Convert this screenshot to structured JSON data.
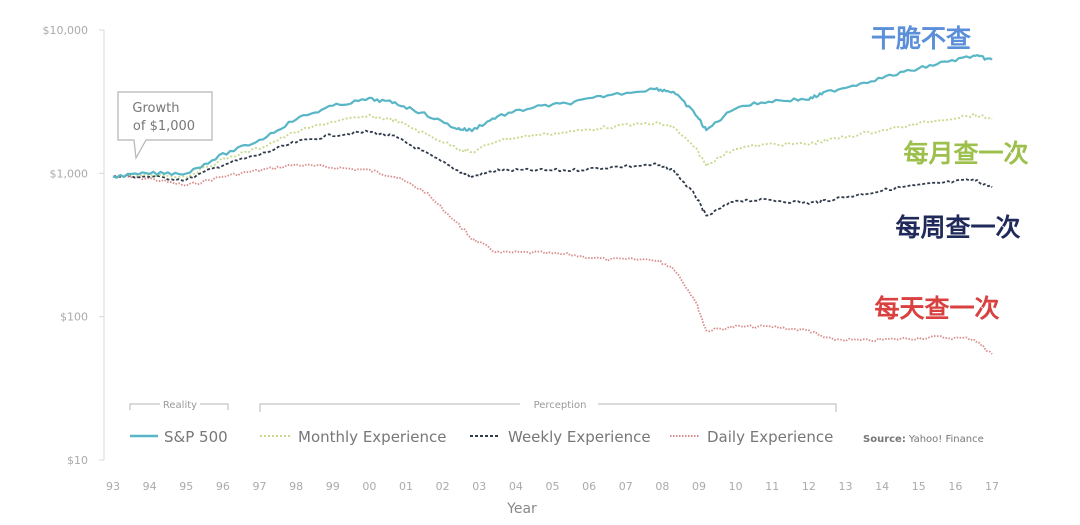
{
  "chart_data": {
    "type": "line",
    "xlabel": "Year",
    "x_ticks": [
      "93",
      "94",
      "95",
      "96",
      "97",
      "98",
      "99",
      "00",
      "01",
      "02",
      "03",
      "04",
      "05",
      "06",
      "07",
      "08",
      "09",
      "10",
      "11",
      "12",
      "13",
      "14",
      "15",
      "16",
      "17"
    ],
    "y_scale": "log",
    "ylim": [
      10,
      10000
    ],
    "y_ticks": [
      {
        "value": 10,
        "label": "$10"
      },
      {
        "value": 100,
        "label": "$100"
      },
      {
        "value": 1000,
        "label": "$1,000"
      },
      {
        "value": 10000,
        "label": "$10,000"
      }
    ],
    "callout": "Growth of $1,000",
    "legend": {
      "group_reality": "Reality",
      "group_perception": "Perception",
      "source_label": "Source:",
      "source_value": "Yahoo! Finance"
    },
    "series": [
      {
        "name": "S&P 500",
        "annotation": "干脆不查",
        "color": "#58b6c6",
        "annotation_color": "#5b8fd9",
        "dash": "solid",
        "x": [
          1993.0,
          1994.0,
          1995.0,
          1996.0,
          1997.0,
          1998.0,
          1999.0,
          2000.0,
          2000.7,
          2001.5,
          2002.4,
          2002.8,
          2003.5,
          2004.5,
          2005.5,
          2006.5,
          2007.8,
          2008.3,
          2008.9,
          2009.2,
          2010.0,
          2011.0,
          2012.0,
          2012.5,
          2013.5,
          2014.5,
          2015.5,
          2016.5,
          2017.0
        ],
        "y": [
          950,
          1000,
          1000,
          1350,
          1700,
          2400,
          2950,
          3300,
          3100,
          2600,
          2050,
          2000,
          2500,
          2900,
          3100,
          3500,
          3900,
          3700,
          2600,
          2000,
          2900,
          3200,
          3300,
          3700,
          4300,
          5000,
          5800,
          6600,
          6200
        ]
      },
      {
        "name": "Monthly Experience",
        "annotation": "每月查一次",
        "color": "#c6d98c",
        "annotation_color": "#9cc04b",
        "dash": "2,2",
        "x": [
          1993.0,
          1994.0,
          1995.0,
          1996.0,
          1997.0,
          1998.0,
          1999.0,
          2000.0,
          2000.7,
          2001.5,
          2002.4,
          2002.8,
          2003.5,
          2004.5,
          2005.5,
          2006.5,
          2007.8,
          2008.3,
          2008.9,
          2009.2,
          2010.0,
          2011.0,
          2012.0,
          2012.5,
          2013.5,
          2014.5,
          2015.5,
          2016.5,
          2017.0
        ],
        "y": [
          950,
          980,
          950,
          1250,
          1500,
          1950,
          2300,
          2500,
          2350,
          1900,
          1500,
          1400,
          1700,
          1850,
          1950,
          2100,
          2250,
          2100,
          1500,
          1150,
          1500,
          1600,
          1600,
          1700,
          1900,
          2100,
          2350,
          2550,
          2400
        ]
      },
      {
        "name": "Weekly Experience",
        "annotation": "每周查一次",
        "color": "#2f3a4a",
        "annotation_color": "#1f2a5a",
        "dash": "3,2",
        "x": [
          1993.0,
          1994.0,
          1995.0,
          1996.0,
          1997.0,
          1998.0,
          1999.0,
          2000.0,
          2000.7,
          2001.5,
          2002.4,
          2002.8,
          2003.5,
          2004.5,
          2005.5,
          2006.5,
          2007.8,
          2008.3,
          2008.9,
          2009.2,
          2010.0,
          2011.0,
          2012.0,
          2012.5,
          2013.5,
          2014.5,
          2015.5,
          2016.5,
          2017.0
        ],
        "y": [
          950,
          950,
          900,
          1150,
          1350,
          1650,
          1850,
          1950,
          1800,
          1400,
          1050,
          950,
          1050,
          1050,
          1050,
          1100,
          1150,
          1050,
          700,
          500,
          650,
          650,
          620,
          650,
          720,
          800,
          850,
          900,
          800
        ]
      },
      {
        "name": "Daily Experience",
        "annotation": "每天查一次",
        "color": "#d98c8c",
        "annotation_color": "#d94040",
        "dash": "1.5,1.5",
        "x": [
          1993.0,
          1994.0,
          1995.0,
          1996.0,
          1997.0,
          1998.0,
          1999.0,
          2000.0,
          2000.7,
          2001.5,
          2002.4,
          2002.8,
          2003.5,
          2004.5,
          2005.5,
          2006.5,
          2007.8,
          2008.3,
          2008.9,
          2009.2,
          2010.0,
          2011.0,
          2012.0,
          2012.5,
          2013.5,
          2014.5,
          2015.5,
          2016.5,
          2017.0
        ],
        "y": [
          950,
          920,
          820,
          950,
          1050,
          1150,
          1100,
          1050,
          950,
          750,
          450,
          350,
          280,
          280,
          270,
          250,
          250,
          220,
          130,
          80,
          85,
          85,
          80,
          70,
          68,
          70,
          72,
          70,
          55
        ]
      }
    ]
  }
}
